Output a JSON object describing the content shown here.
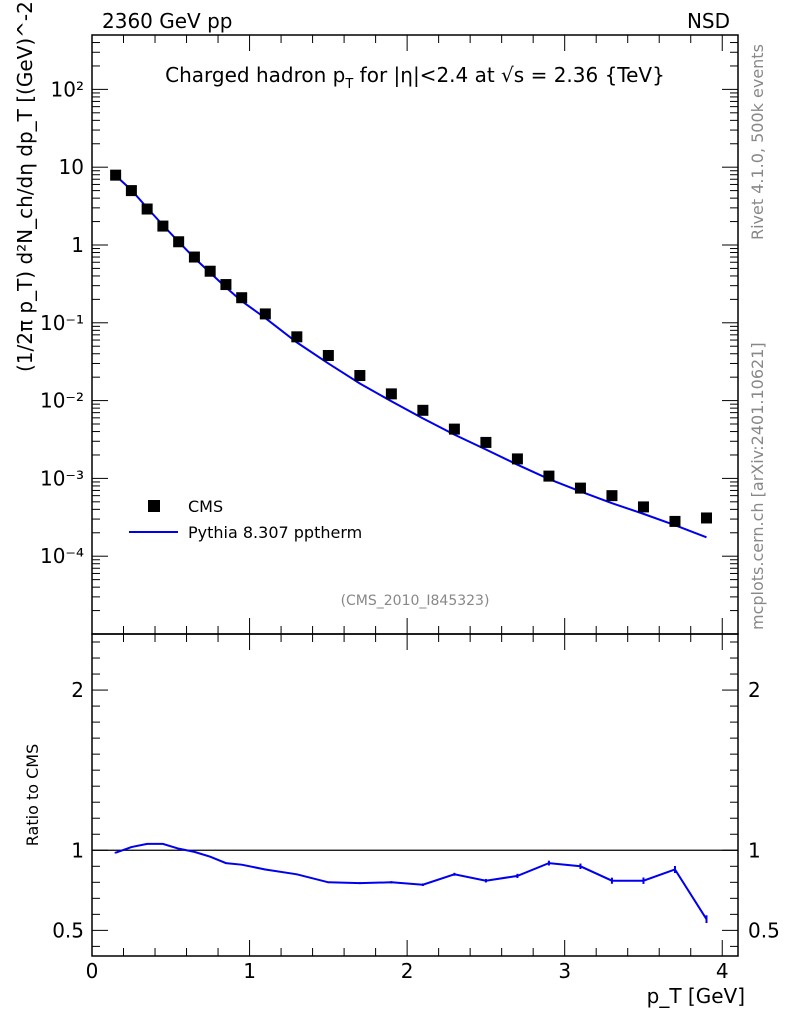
{
  "header": {
    "left": "2360 GeV pp",
    "right": "NSD"
  },
  "side_text": {
    "rivet": "Rivet 4.1.0,  500k events",
    "mcplots": "mcplots.cern.ch [arXiv:2401.10621]"
  },
  "colors": {
    "mc": "#0000ee",
    "data": "#000000",
    "ref": "#888888"
  },
  "chart_data": [
    {
      "type": "scatter",
      "panel": "main",
      "title_parts": {
        "a": "Charged hadron p",
        "sub": "T",
        "b": " for |η|<2.4 at √s = 2.36 {TeV}"
      },
      "ylabel_text": "(1/2π p_T) d²N_ch/dη dp_T [(GeV)^-2]",
      "xlabel_text": "p_T [GeV]",
      "xlim": [
        0,
        4.1
      ],
      "ylim": [
        1e-05,
        500
      ],
      "yscale": "log",
      "y_tick_labels": [
        "10⁻⁴",
        "10⁻³",
        "10⁻²",
        "10⁻¹",
        "1",
        "10",
        "10²"
      ],
      "y_tick_values": [
        0.0001,
        0.001,
        0.01,
        0.1,
        1,
        10,
        100
      ],
      "x_tick_labels": [
        "0",
        "1",
        "2",
        "3",
        "4"
      ],
      "ref_label": "(CMS_2010_I845323)",
      "legend_position": "lower-left",
      "series": [
        {
          "name": "CMS",
          "style": "markers",
          "x": [
            0.15,
            0.25,
            0.35,
            0.45,
            0.55,
            0.65,
            0.75,
            0.85,
            0.95,
            1.1,
            1.3,
            1.5,
            1.7,
            1.9,
            2.1,
            2.3,
            2.5,
            2.7,
            2.9,
            3.1,
            3.3,
            3.5,
            3.7,
            3.9
          ],
          "y": [
            7.9,
            5.0,
            2.9,
            1.75,
            1.1,
            0.7,
            0.46,
            0.31,
            0.21,
            0.13,
            0.066,
            0.038,
            0.021,
            0.0122,
            0.0075,
            0.0043,
            0.0029,
            0.00178,
            0.00107,
            0.00075,
            0.0006,
            0.00043,
            0.00028,
            0.00031
          ]
        },
        {
          "name": "Pythia 8.307 pptherm",
          "style": "line",
          "x": [
            0.15,
            0.25,
            0.35,
            0.45,
            0.55,
            0.65,
            0.75,
            0.85,
            0.95,
            1.1,
            1.3,
            1.5,
            1.7,
            1.9,
            2.1,
            2.3,
            2.5,
            2.7,
            2.9,
            3.1,
            3.3,
            3.5,
            3.7,
            3.9
          ],
          "y": [
            7.8,
            5.1,
            3.0,
            1.8,
            1.1,
            0.68,
            0.44,
            0.285,
            0.19,
            0.115,
            0.056,
            0.03,
            0.0166,
            0.0098,
            0.0059,
            0.00365,
            0.00235,
            0.0015,
            0.00098,
            0.00068,
            0.00048,
            0.00035,
            0.00025,
            0.000175
          ]
        }
      ]
    },
    {
      "type": "line",
      "panel": "ratio",
      "ylabel": "Ratio to CMS",
      "xlim": [
        0,
        4.1
      ],
      "ylim": [
        0.34,
        2.35
      ],
      "y_tick_labels": [
        "0.5",
        "1",
        "2"
      ],
      "y_tick_values": [
        0.5,
        1,
        2
      ],
      "series": [
        {
          "name": "Pythia 8.307 pptherm / CMS",
          "x": [
            0.15,
            0.25,
            0.35,
            0.45,
            0.55,
            0.65,
            0.75,
            0.85,
            0.95,
            1.1,
            1.3,
            1.5,
            1.7,
            1.9,
            2.1,
            2.3,
            2.5,
            2.7,
            2.9,
            3.1,
            3.3,
            3.5,
            3.7,
            3.9
          ],
          "y": [
            0.985,
            1.02,
            1.04,
            1.04,
            1.01,
            0.99,
            0.96,
            0.92,
            0.91,
            0.88,
            0.85,
            0.8,
            0.795,
            0.8,
            0.785,
            0.85,
            0.81,
            0.84,
            0.92,
            0.9,
            0.81,
            0.81,
            0.88,
            0.57
          ],
          "err": [
            0.005,
            0.004,
            0.004,
            0.004,
            0.004,
            0.004,
            0.004,
            0.004,
            0.004,
            0.004,
            0.005,
            0.005,
            0.006,
            0.007,
            0.008,
            0.009,
            0.011,
            0.013,
            0.015,
            0.017,
            0.019,
            0.02,
            0.022,
            0.024
          ]
        }
      ]
    }
  ]
}
